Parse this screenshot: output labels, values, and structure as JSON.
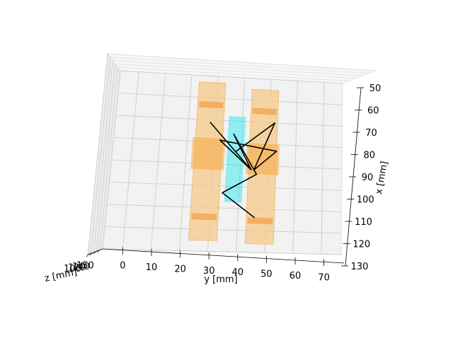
{
  "chart_data": {
    "type": "3d-plot",
    "title": "",
    "axes": {
      "x": {
        "label": "x [mm]",
        "ticks": [
          "50",
          "60",
          "70",
          "80",
          "90",
          "100",
          "110",
          "120",
          "130"
        ],
        "range": [
          50,
          130
        ]
      },
      "y": {
        "label": "y [mm]",
        "ticks": [
          "0",
          "10",
          "20",
          "30",
          "40",
          "50",
          "60",
          "70"
        ],
        "range": [
          -7,
          77
        ]
      },
      "z": {
        "label": "z [mm]",
        "ticks": [
          "100",
          "120",
          "140",
          "150"
        ],
        "note": "tick labels overlap near the corner"
      }
    },
    "objects": [
      {
        "name": "left-electrode",
        "color": "#f5c98a",
        "shape": "slab",
        "y_range": [
          23,
          33
        ],
        "x_range": [
          53,
          125
        ]
      },
      {
        "name": "right-electrode",
        "color": "#f5c98a",
        "shape": "slab",
        "y_range": [
          43,
          53
        ],
        "x_range": [
          55,
          126
        ]
      },
      {
        "name": "center-crystal",
        "color": "#00e5ee",
        "shape": "slab",
        "y_range": [
          35,
          41
        ],
        "x_range": [
          68,
          107
        ]
      }
    ],
    "wire_points": [
      [
        28,
        71
      ],
      [
        44,
        92
      ],
      [
        32,
        79
      ],
      [
        53,
        83
      ],
      [
        45,
        92
      ],
      [
        52,
        70
      ],
      [
        38,
        84
      ],
      [
        44,
        92
      ],
      [
        37,
        76
      ],
      [
        46,
        94
      ],
      [
        34,
        103
      ],
      [
        46,
        114
      ]
    ],
    "grid": true,
    "pane_color": "#f2f2f2"
  }
}
